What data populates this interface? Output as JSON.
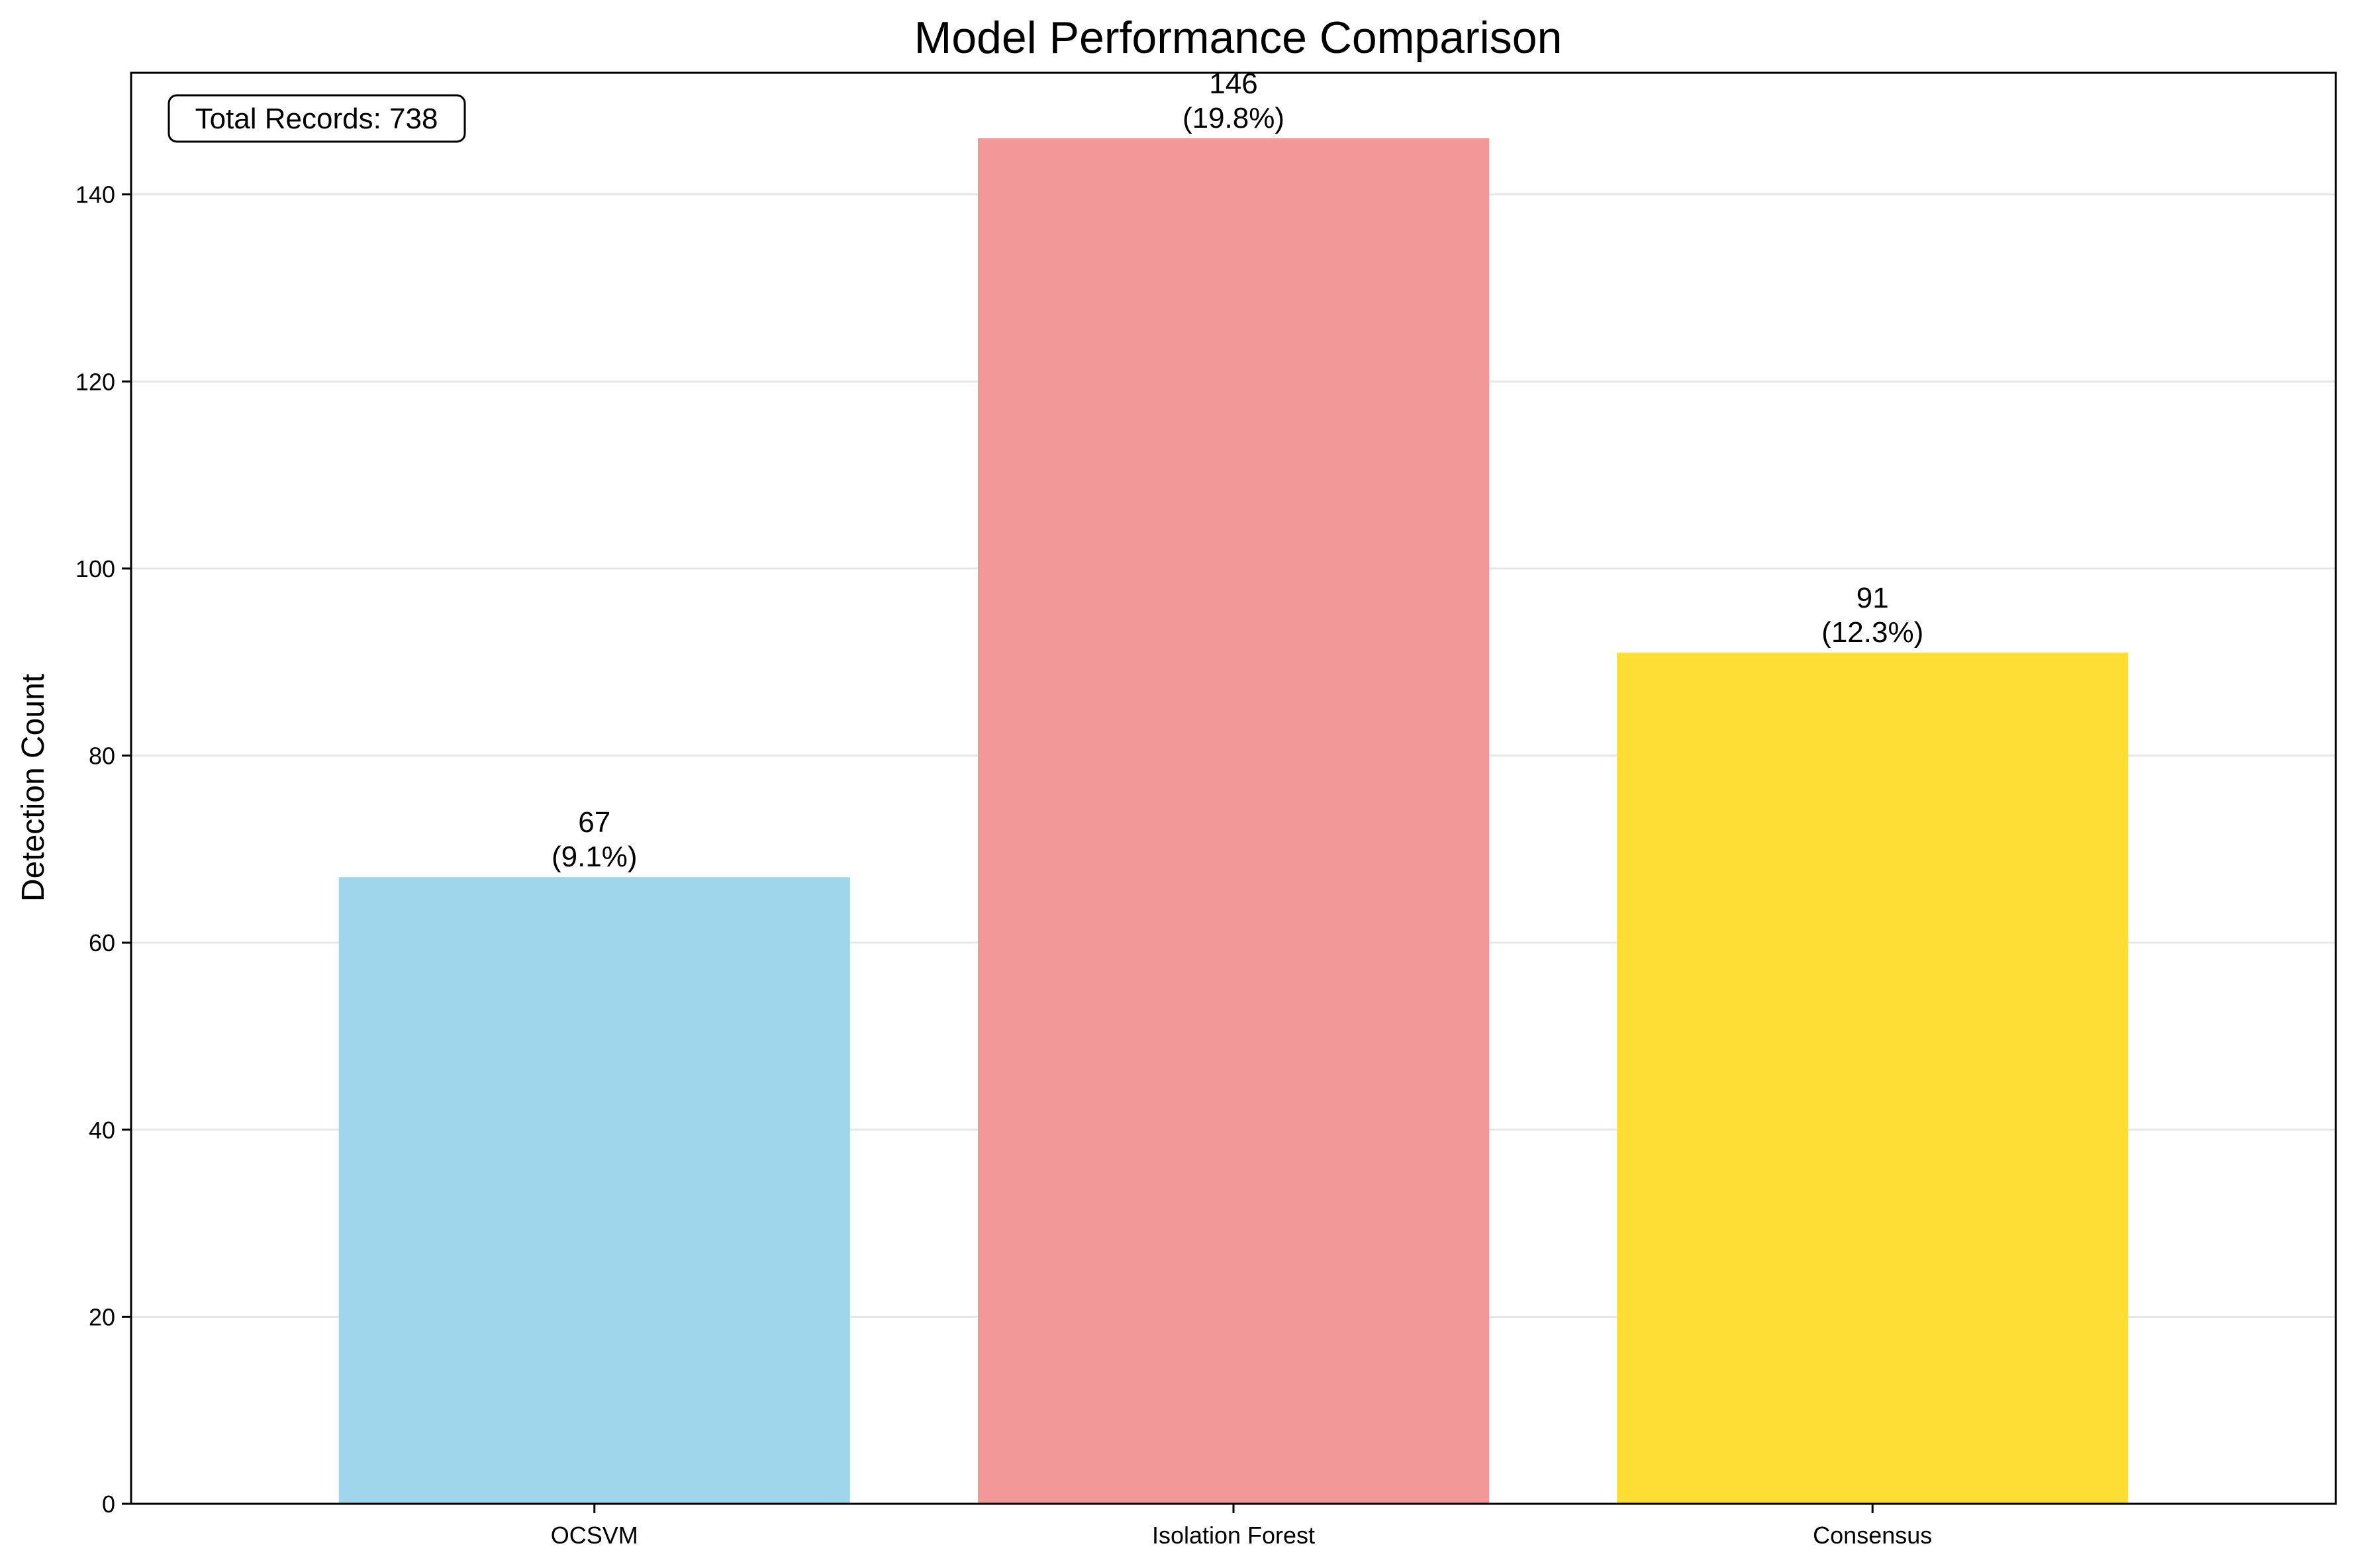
{
  "chart_data": {
    "type": "bar",
    "title": "Model Performance Comparison",
    "xlabel": "",
    "ylabel": "Detection Count",
    "categories": [
      "OCSVM",
      "Isolation Forest",
      "Consensus"
    ],
    "values": [
      67,
      146,
      91
    ],
    "value_labels": [
      "67",
      "146",
      "91"
    ],
    "percent_labels": [
      "(9.1%)",
      "(19.8%)",
      "(12.3%)"
    ],
    "colors": [
      "#9fd6ec",
      "#f29898",
      "#fede34"
    ],
    "ylim": [
      0,
      153
    ],
    "yticks": [
      0,
      20,
      40,
      60,
      80,
      100,
      120,
      140
    ],
    "ytick_labels": [
      "0",
      "20",
      "40",
      "60",
      "80",
      "100",
      "120",
      "140"
    ],
    "grid": "y-major",
    "annotation": "Total Records: 738"
  }
}
